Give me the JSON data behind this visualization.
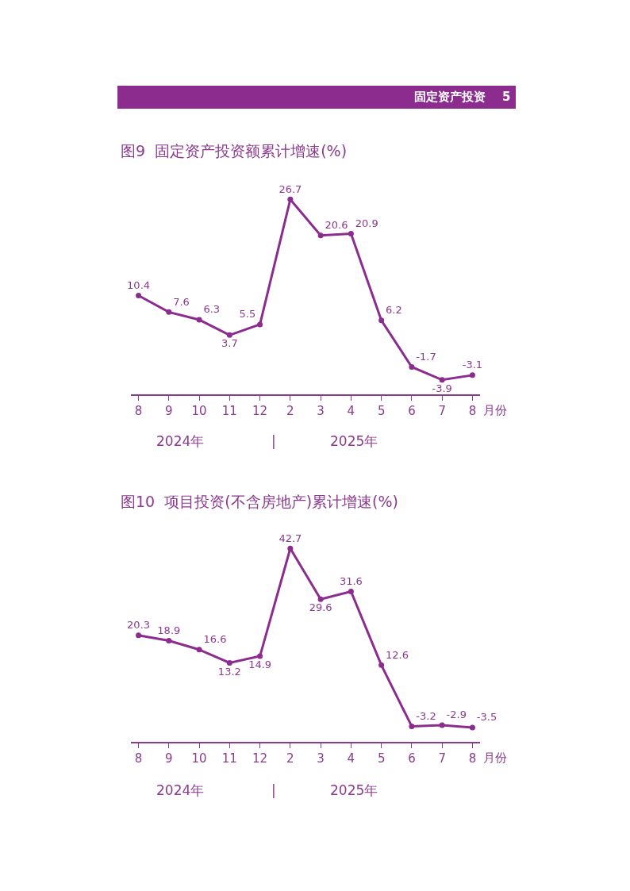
{
  "chart_data": [
    {
      "type": "line",
      "title": "图9  固定资产投资额累计增速(%)",
      "xlabel": "月份",
      "categories": [
        "8",
        "9",
        "10",
        "11",
        "12",
        "2",
        "3",
        "4",
        "5",
        "6",
        "7",
        "8"
      ],
      "series": [
        {
          "color": "#8b2c8e",
          "values": [
            10.4,
            7.6,
            6.3,
            3.7,
            5.5,
            26.7,
            20.6,
            20.9,
            6.2,
            -1.7,
            -3.9,
            -3.1
          ]
        }
      ],
      "data_labels": true,
      "marker": "circle",
      "line_style": "solid",
      "annotations": [
        "固定资产投资    5",
        "2024年",
        "|",
        "2025年"
      ]
    },
    {
      "type": "line",
      "title": "图10  项目投资(不含房地产)累计增速(%)",
      "xlabel": "月份",
      "categories": [
        "8",
        "9",
        "10",
        "11",
        "12",
        "2",
        "3",
        "4",
        "5",
        "6",
        "7",
        "8"
      ],
      "series": [
        {
          "color": "#8b2c8e",
          "values": [
            20.3,
            18.9,
            16.6,
            13.2,
            14.9,
            42.7,
            29.6,
            31.6,
            12.6,
            -3.2,
            -2.9,
            -3.5
          ]
        }
      ],
      "data_labels": true,
      "marker": "circle",
      "line_style": "solid",
      "annotations": [
        "2024年",
        "|",
        "2025年"
      ]
    }
  ]
}
